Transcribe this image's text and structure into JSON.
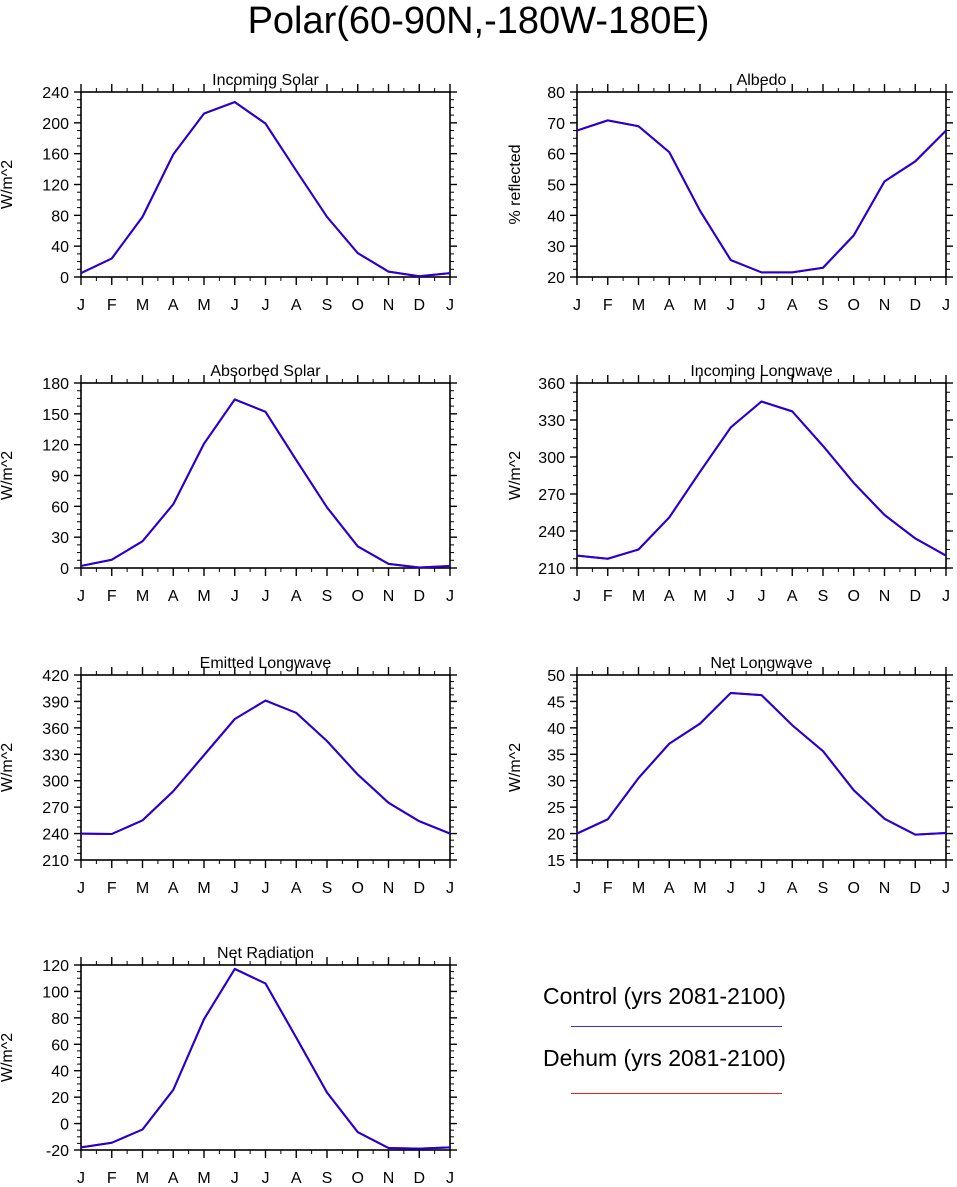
{
  "title": "Polar(60-90N,-180W-180E)",
  "months": [
    "J",
    "F",
    "M",
    "A",
    "M",
    "J",
    "J",
    "A",
    "S",
    "O",
    "N",
    "D",
    "J"
  ],
  "colors": {
    "control": "#2200dd",
    "dehum": "#dd0000",
    "axis": "#000000"
  },
  "legend": [
    {
      "label": "Control (yrs 2081-2100)",
      "color": "#3333dd"
    },
    {
      "label": "Dehum (yrs 2081-2100)",
      "color": "#dd2222"
    }
  ],
  "chart_data": [
    {
      "type": "line",
      "title": "Incoming Solar",
      "ylabel": "W/m^2",
      "ylim": [
        0,
        240
      ],
      "yticks": [
        0,
        40,
        80,
        120,
        160,
        200,
        240
      ],
      "series": [
        {
          "values": [
            5,
            24,
            78,
            159,
            212,
            227,
            199,
            138,
            78,
            31,
            7,
            1,
            5
          ]
        },
        {
          "values": [
            5,
            24,
            78,
            159,
            212,
            227,
            199,
            138,
            78,
            31,
            7,
            1,
            5
          ]
        }
      ]
    },
    {
      "type": "line",
      "title": "Albedo",
      "ylabel": "% reflected",
      "ylim": [
        20,
        80
      ],
      "yticks": [
        20,
        30,
        40,
        50,
        60,
        70,
        80
      ],
      "series": [
        {
          "values": [
            67.5,
            70.8,
            68.9,
            60.5,
            41.5,
            25.5,
            21.5,
            21.5,
            23,
            33.5,
            51,
            57.5,
            67.5
          ]
        },
        {
          "values": [
            67.5,
            70.8,
            68.9,
            60.5,
            41.5,
            25.5,
            21.5,
            21.5,
            23,
            33.5,
            51,
            57.5,
            67.5
          ]
        }
      ]
    },
    {
      "type": "line",
      "title": "Absorbed Solar",
      "ylabel": "W/m^2",
      "ylim": [
        0,
        180
      ],
      "yticks": [
        0,
        30,
        60,
        90,
        120,
        150,
        180
      ],
      "series": [
        {
          "values": [
            2,
            8,
            26,
            62,
            121,
            164,
            152,
            105,
            59,
            21,
            4,
            0.5,
            2
          ]
        },
        {
          "values": [
            2,
            8,
            26,
            62,
            121,
            164,
            152,
            105,
            59,
            21,
            4,
            0.5,
            2
          ]
        }
      ]
    },
    {
      "type": "line",
      "title": "Incoming Longwave",
      "ylabel": "W/m^2",
      "ylim": [
        210,
        360
      ],
      "yticks": [
        210,
        240,
        270,
        300,
        330,
        360
      ],
      "series": [
        {
          "values": [
            220,
            217.5,
            225,
            251,
            288,
            324,
            345,
            337,
            309,
            279,
            253,
            234,
            220
          ]
        },
        {
          "values": [
            220,
            217.5,
            225,
            251,
            288,
            324,
            345,
            337,
            309,
            279,
            253,
            234,
            220
          ]
        }
      ]
    },
    {
      "type": "line",
      "title": "Emitted Longwave",
      "ylabel": "W/m^2",
      "ylim": [
        210,
        420
      ],
      "yticks": [
        210,
        240,
        270,
        300,
        330,
        360,
        390,
        420
      ],
      "series": [
        {
          "values": [
            240,
            239.5,
            255,
            288,
            329,
            370,
            391,
            377,
            345,
            307,
            275,
            254,
            240
          ]
        },
        {
          "values": [
            240,
            239.5,
            255,
            288,
            329,
            370,
            391,
            377,
            345,
            307,
            275,
            254,
            240
          ]
        }
      ]
    },
    {
      "type": "line",
      "title": "Net Longwave",
      "ylabel": "W/m^2",
      "ylim": [
        15,
        50
      ],
      "yticks": [
        15,
        20,
        25,
        30,
        35,
        40,
        45,
        50
      ],
      "series": [
        {
          "values": [
            20,
            22.7,
            30.5,
            37,
            40.8,
            46.6,
            46.2,
            40.5,
            35.6,
            28.2,
            22.8,
            19.8,
            20.1
          ]
        },
        {
          "values": [
            20,
            22.7,
            30.5,
            37,
            40.8,
            46.6,
            46.2,
            40.5,
            35.6,
            28.2,
            22.8,
            19.8,
            20.1
          ]
        }
      ]
    },
    {
      "type": "line",
      "title": "Net Radiation",
      "ylabel": "W/m^2",
      "ylim": [
        -20,
        120
      ],
      "yticks": [
        -20,
        0,
        20,
        40,
        60,
        80,
        100,
        120
      ],
      "series": [
        {
          "values": [
            -18,
            -14.5,
            -4.5,
            25.5,
            79,
            117,
            106,
            65,
            23.5,
            -6.5,
            -18.5,
            -19,
            -18
          ]
        },
        {
          "values": [
            -18,
            -14.5,
            -4.5,
            25.5,
            79,
            117,
            106,
            65,
            23.5,
            -6.5,
            -18.5,
            -19,
            -18
          ]
        }
      ]
    }
  ]
}
